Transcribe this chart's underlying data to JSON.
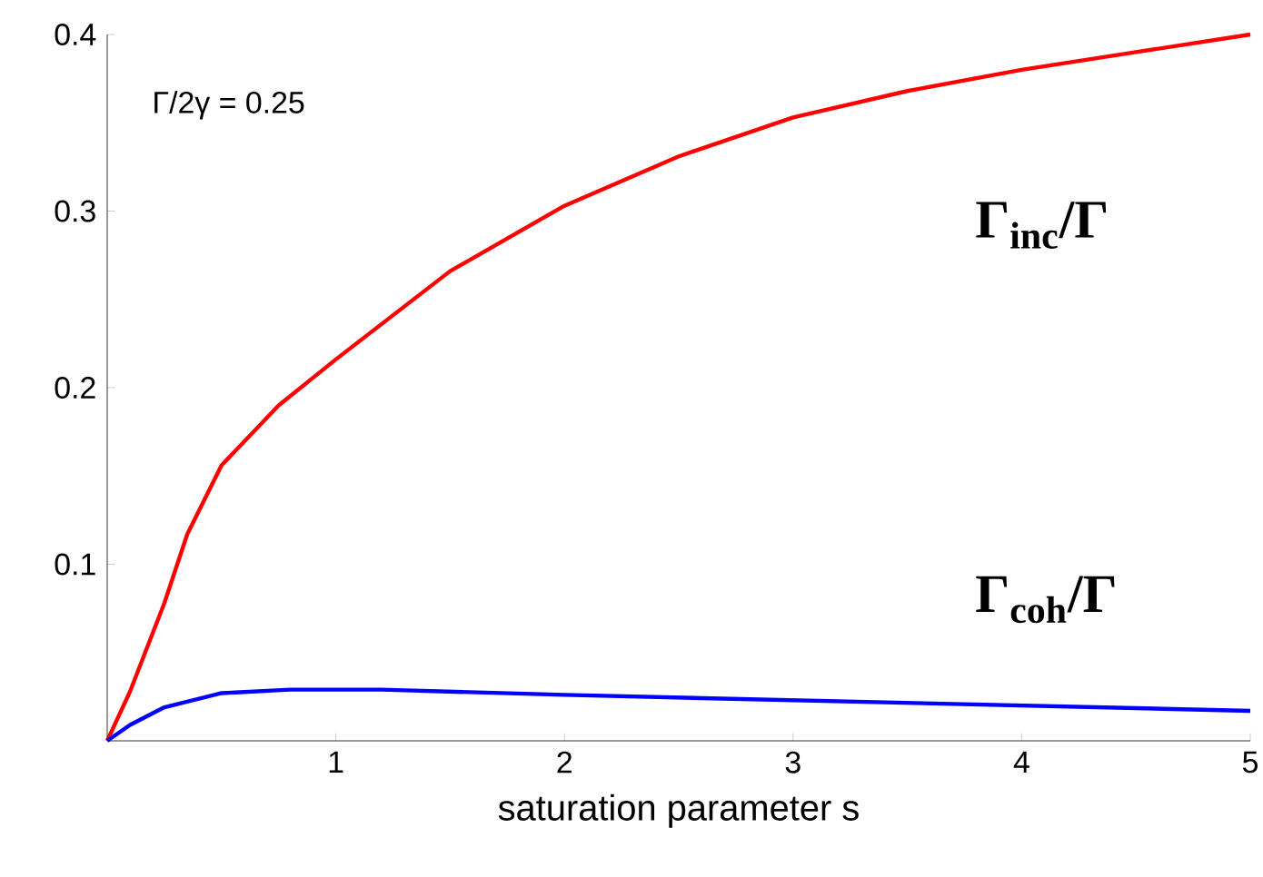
{
  "chart_data": {
    "type": "line",
    "xlabel": "saturation parameter s",
    "annotations": [
      "Γ/2γ = 0.25"
    ],
    "series": [
      {
        "name": "Γ$_{inc}$/Γ",
        "color": "#ff0000",
        "x": [
          0,
          0.1,
          0.25,
          0.35,
          0.5,
          0.75,
          1,
          1.5,
          2,
          2.5,
          3,
          3.5,
          4,
          4.5,
          5
        ],
        "values": [
          0,
          0.028,
          0.078,
          0.117,
          0.156,
          0.19,
          0.216,
          0.266,
          0.303,
          0.331,
          0.353,
          0.368,
          0.38,
          0.39,
          0.4
        ]
      },
      {
        "name": "Γ$_{coh}$/Γ",
        "color": "#0000ff",
        "x": [
          0,
          0.1,
          0.25,
          0.5,
          0.8,
          1.2,
          2,
          3,
          4,
          5
        ],
        "values": [
          0,
          0.009,
          0.019,
          0.027,
          0.029,
          0.029,
          0.026,
          0.023,
          0.02,
          0.017
        ]
      }
    ],
    "xlim": [
      0,
      5
    ],
    "ylim": [
      0,
      0.4
    ],
    "xticks": [
      1,
      2,
      3,
      4,
      5
    ],
    "yticks": [
      0.1,
      0.2,
      0.3,
      0.4
    ],
    "line_style": "solid"
  }
}
